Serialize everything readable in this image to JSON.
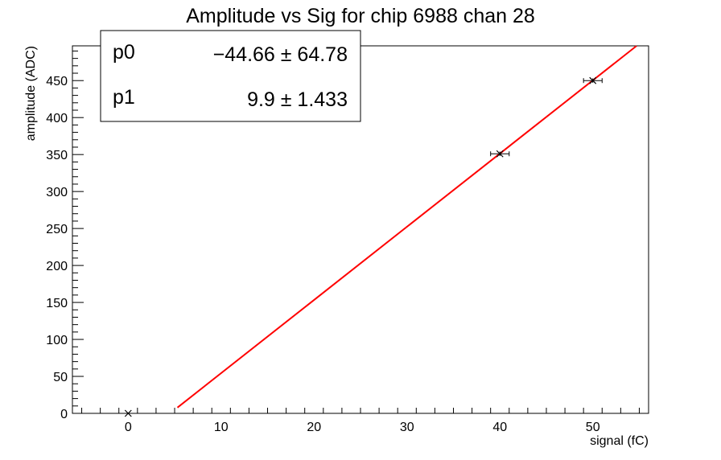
{
  "chart_data": {
    "type": "scatter",
    "title": "Amplitude vs Sig for chip 6988 chan 28",
    "xlabel": "signal (fC)",
    "ylabel": "amplitude (ADC)",
    "xlim": [
      -6,
      56
    ],
    "ylim": [
      0,
      497
    ],
    "x_ticks": [
      0,
      10,
      20,
      30,
      40,
      50
    ],
    "y_ticks": [
      0,
      50,
      100,
      150,
      200,
      250,
      300,
      350,
      400,
      450
    ],
    "grid": false,
    "points": [
      {
        "x": 0,
        "y": 0,
        "xerr": 0,
        "yerr": 0
      },
      {
        "x": 40,
        "y": 351,
        "xerr": 1,
        "yerr": 3
      },
      {
        "x": 50,
        "y": 450,
        "xerr": 1,
        "yerr": 3
      }
    ],
    "fit": {
      "type": "line",
      "color": "#ff0000",
      "x_range": [
        5.3,
        54.7
      ],
      "p0": -44.66,
      "p1": 9.9
    },
    "stats_box": {
      "placement": "top-left",
      "rows": [
        {
          "name": "p0",
          "value": "−44.66 ± 64.78"
        },
        {
          "name": "p1",
          "value": "9.9 ± 1.433"
        }
      ]
    }
  }
}
